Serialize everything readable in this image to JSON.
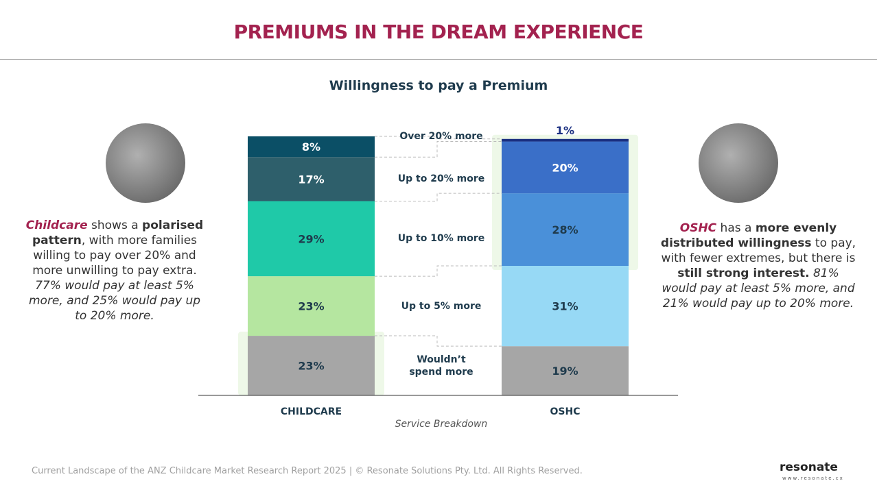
{
  "title": "PREMIUMS IN THE DREAM EXPERIENCE",
  "chart_data": {
    "type": "stacked-bar",
    "title": "Willingness to pay a Premium",
    "x_label": "Service Breakdown",
    "categories": [
      "CHILDCARE",
      "OSHC"
    ],
    "ylim": [
      0,
      100
    ],
    "series": [
      {
        "name": "Wouldn’t spend more",
        "colors": [
          "#a6a6a6",
          "#a6a6a6"
        ],
        "label_colors": [
          "#1f3b4d",
          "#1f3b4d"
        ],
        "values": [
          23,
          19
        ],
        "value_labels": [
          "23%",
          "19%"
        ]
      },
      {
        "name": "Up to 5% more",
        "colors": [
          "#b5e6a0",
          "#97d9f5"
        ],
        "label_colors": [
          "#1f3b4d",
          "#1f3b4d"
        ],
        "values": [
          23,
          31
        ],
        "value_labels": [
          "23%",
          "31%"
        ]
      },
      {
        "name": "Up to 10% more",
        "colors": [
          "#1fc9a8",
          "#4a90d9"
        ],
        "label_colors": [
          "#1f3b4d",
          "#1f3b4d"
        ],
        "values": [
          29,
          28
        ],
        "value_labels": [
          "29%",
          "28%"
        ]
      },
      {
        "name": "Up to 20% more",
        "colors": [
          "#2e5f6b",
          "#3a6fc8"
        ],
        "label_colors": [
          "#ffffff",
          "#ffffff"
        ],
        "values": [
          17,
          20
        ],
        "value_labels": [
          "17%",
          "20%"
        ]
      },
      {
        "name": "Over 20% more",
        "colors": [
          "#0b4f66",
          "#1a2e80"
        ],
        "label_colors": [
          "#ffffff",
          "#1a2e80"
        ],
        "values": [
          8,
          1
        ],
        "value_labels": [
          "8%",
          "1%"
        ]
      }
    ]
  },
  "left_note": [
    {
      "text": "Childcare",
      "bold": true,
      "italic": true,
      "accent": true
    },
    {
      "text": " shows a ",
      "bold": false,
      "italic": false,
      "accent": false
    },
    {
      "text": "polarised pattern",
      "bold": true,
      "italic": false,
      "accent": false
    },
    {
      "text": ", with more families willing to pay over 20% and more unwilling to pay extra. ",
      "bold": false,
      "italic": false,
      "accent": false
    },
    {
      "text": "77% would pay at least 5% more, and 25% would pay up to 20% more.",
      "bold": false,
      "italic": true,
      "accent": false
    }
  ],
  "right_note": [
    {
      "text": "OSHC",
      "bold": true,
      "italic": true,
      "accent": true
    },
    {
      "text": " has a ",
      "bold": false,
      "italic": false,
      "accent": false
    },
    {
      "text": "more evenly distributed willingness",
      "bold": true,
      "italic": false,
      "accent": false
    },
    {
      "text": " to pay, with fewer extremes,  but there is ",
      "bold": false,
      "italic": false,
      "accent": false
    },
    {
      "text": "still strong interest.",
      "bold": true,
      "italic": false,
      "accent": false
    },
    {
      "text": " ",
      "bold": false,
      "italic": false,
      "accent": false
    },
    {
      "text": "81% would pay at least 5% more, and 21% would pay up to 20% more.",
      "bold": false,
      "italic": true,
      "accent": false
    }
  ],
  "footer": "Current Landscape of the ANZ Childcare Market Research Report 2025 | © Resonate Solutions Pty. Ltd. All Rights Reserved.",
  "logo": {
    "name": "resonate",
    "url": "www.resonate.cx"
  }
}
